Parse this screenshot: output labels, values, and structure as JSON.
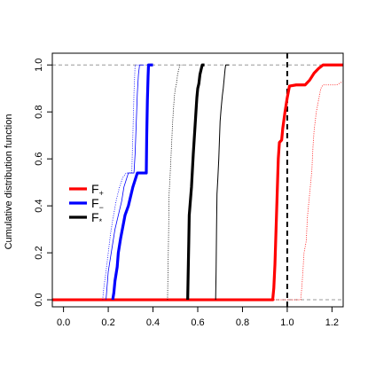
{
  "chart_data": {
    "type": "line",
    "title": "",
    "xlabel": "",
    "ylabel": "Cumulative distribution function",
    "xlim": [
      -0.05,
      1.25
    ],
    "ylim": [
      -0.03,
      1.05
    ],
    "xticks": [
      "0.0",
      "0.2",
      "0.4",
      "0.6",
      "0.8",
      "1.0",
      "1.2"
    ],
    "yticks": [
      "0.0",
      "0.2",
      "0.4",
      "0.6",
      "0.8",
      "1.0"
    ],
    "grid": false,
    "legend_position": "middle-left",
    "reference_lines": [
      {
        "axis": "y",
        "value": 0,
        "style": "dashed",
        "color": "#9a9a9a"
      },
      {
        "axis": "y",
        "value": 1,
        "style": "dashed",
        "color": "#9a9a9a"
      },
      {
        "axis": "x",
        "value": 1,
        "style": "dashed",
        "color": "#000000"
      }
    ],
    "legend": [
      {
        "label": "F",
        "sub": "+",
        "color": "#ff0000"
      },
      {
        "label": "F",
        "sub": "−",
        "color": "#0000ff"
      },
      {
        "label": "F",
        "sub": "*",
        "color": "#000000"
      }
    ],
    "series": [
      {
        "group": "F+",
        "color": "#ff0000",
        "width": 3.2,
        "style": "solid",
        "points": [
          [
            -0.05,
            0
          ],
          [
            0.935,
            0
          ],
          [
            0.94,
            0.05
          ],
          [
            0.945,
            0.15
          ],
          [
            0.95,
            0.3
          ],
          [
            0.955,
            0.45
          ],
          [
            0.96,
            0.6
          ],
          [
            0.965,
            0.67
          ],
          [
            0.975,
            0.68
          ],
          [
            0.98,
            0.73
          ],
          [
            0.99,
            0.8
          ],
          [
            1.0,
            0.86
          ],
          [
            1.01,
            0.91
          ],
          [
            1.04,
            0.915
          ],
          [
            1.08,
            0.915
          ],
          [
            1.1,
            0.935
          ],
          [
            1.12,
            0.965
          ],
          [
            1.14,
            0.985
          ],
          [
            1.16,
            1.0
          ],
          [
            1.25,
            1.0
          ]
        ]
      },
      {
        "group": "F+",
        "color": "#ff0000",
        "width": 0.8,
        "style": "dotted",
        "points": [
          [
            -0.05,
            0
          ],
          [
            1.06,
            0
          ],
          [
            1.065,
            0.05
          ],
          [
            1.07,
            0.12
          ],
          [
            1.075,
            0.2
          ],
          [
            1.085,
            0.25
          ],
          [
            1.09,
            0.35
          ],
          [
            1.1,
            0.45
          ],
          [
            1.11,
            0.55
          ],
          [
            1.115,
            0.65
          ],
          [
            1.12,
            0.72
          ],
          [
            1.13,
            0.8
          ],
          [
            1.15,
            0.9
          ],
          [
            1.16,
            0.915
          ],
          [
            1.22,
            0.915
          ],
          [
            1.25,
            0.93
          ]
        ]
      },
      {
        "group": "F−",
        "color": "#0000ff",
        "width": 3.2,
        "style": "solid",
        "points": [
          [
            0.22,
            0
          ],
          [
            0.225,
            0.03
          ],
          [
            0.23,
            0.08
          ],
          [
            0.24,
            0.14
          ],
          [
            0.245,
            0.2
          ],
          [
            0.255,
            0.26
          ],
          [
            0.265,
            0.31
          ],
          [
            0.275,
            0.36
          ],
          [
            0.29,
            0.4
          ],
          [
            0.3,
            0.44
          ],
          [
            0.31,
            0.48
          ],
          [
            0.32,
            0.51
          ],
          [
            0.33,
            0.54
          ],
          [
            0.37,
            0.54
          ],
          [
            0.372,
            0.7
          ],
          [
            0.375,
            0.85
          ],
          [
            0.378,
            0.95
          ],
          [
            0.38,
            1.0
          ],
          [
            0.4,
            1.0
          ]
        ]
      },
      {
        "group": "F−",
        "color": "#0000ff",
        "width": 0.8,
        "style": "solid",
        "points": [
          [
            0.19,
            0
          ],
          [
            0.195,
            0.06
          ],
          [
            0.2,
            0.12
          ],
          [
            0.21,
            0.18
          ],
          [
            0.22,
            0.24
          ],
          [
            0.23,
            0.3
          ],
          [
            0.245,
            0.36
          ],
          [
            0.26,
            0.42
          ],
          [
            0.27,
            0.48
          ],
          [
            0.28,
            0.51
          ],
          [
            0.29,
            0.54
          ],
          [
            0.315,
            0.54
          ],
          [
            0.32,
            0.62
          ],
          [
            0.325,
            0.75
          ],
          [
            0.33,
            0.88
          ],
          [
            0.335,
            0.96
          ],
          [
            0.34,
            1.0
          ],
          [
            0.36,
            1.0
          ]
        ]
      },
      {
        "group": "F−",
        "color": "#0000ff",
        "width": 0.8,
        "style": "dotted",
        "points": [
          [
            0.175,
            0
          ],
          [
            0.18,
            0.05
          ],
          [
            0.19,
            0.12
          ],
          [
            0.2,
            0.2
          ],
          [
            0.21,
            0.28
          ],
          [
            0.22,
            0.34
          ],
          [
            0.235,
            0.42
          ],
          [
            0.25,
            0.48
          ],
          [
            0.265,
            0.52
          ],
          [
            0.28,
            0.54
          ],
          [
            0.305,
            0.54
          ],
          [
            0.31,
            0.7
          ],
          [
            0.315,
            0.88
          ],
          [
            0.32,
            1.0
          ],
          [
            0.34,
            1.0
          ]
        ]
      },
      {
        "group": "F*",
        "color": "#000000",
        "width": 3.2,
        "style": "solid",
        "points": [
          [
            0.555,
            0
          ],
          [
            0.557,
            0.1
          ],
          [
            0.56,
            0.25
          ],
          [
            0.562,
            0.36
          ],
          [
            0.567,
            0.42
          ],
          [
            0.572,
            0.48
          ],
          [
            0.576,
            0.55
          ],
          [
            0.58,
            0.62
          ],
          [
            0.584,
            0.68
          ],
          [
            0.588,
            0.74
          ],
          [
            0.592,
            0.8
          ],
          [
            0.596,
            0.86
          ],
          [
            0.6,
            0.9
          ],
          [
            0.605,
            0.92
          ],
          [
            0.61,
            0.96
          ],
          [
            0.615,
            0.98
          ],
          [
            0.62,
            1.0
          ],
          [
            0.63,
            1.0
          ]
        ]
      },
      {
        "group": "F*",
        "color": "#000000",
        "width": 1.0,
        "style": "solid",
        "points": [
          [
            0.68,
            0
          ],
          [
            0.682,
            0.12
          ],
          [
            0.684,
            0.3
          ],
          [
            0.686,
            0.45
          ],
          [
            0.69,
            0.52
          ],
          [
            0.694,
            0.6
          ],
          [
            0.697,
            0.68
          ],
          [
            0.7,
            0.76
          ],
          [
            0.705,
            0.82
          ],
          [
            0.71,
            0.87
          ],
          [
            0.714,
            0.9
          ],
          [
            0.718,
            0.94
          ],
          [
            0.722,
            0.98
          ],
          [
            0.725,
            1.0
          ],
          [
            0.74,
            1.0
          ]
        ]
      },
      {
        "group": "F*",
        "color": "#000000",
        "width": 0.8,
        "style": "dotted",
        "points": [
          [
            0.465,
            0
          ],
          [
            0.467,
            0.12
          ],
          [
            0.47,
            0.3
          ],
          [
            0.472,
            0.45
          ],
          [
            0.476,
            0.52
          ],
          [
            0.48,
            0.6
          ],
          [
            0.484,
            0.68
          ],
          [
            0.488,
            0.76
          ],
          [
            0.492,
            0.82
          ],
          [
            0.496,
            0.87
          ],
          [
            0.5,
            0.9
          ],
          [
            0.505,
            0.92
          ],
          [
            0.51,
            0.96
          ],
          [
            0.515,
            0.98
          ],
          [
            0.52,
            1.0
          ],
          [
            0.53,
            1.0
          ]
        ]
      }
    ]
  }
}
